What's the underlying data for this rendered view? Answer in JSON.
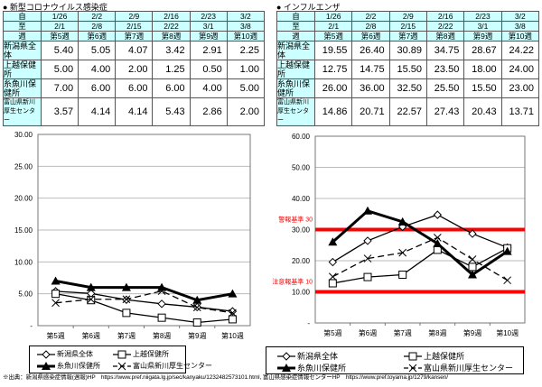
{
  "covid": {
    "title": "● 新型コロナウイルス感染症",
    "header_labels": [
      "自",
      "至",
      "週"
    ],
    "from": [
      "1/26",
      "2/2",
      "2/9",
      "2/16",
      "2/23",
      "3/2"
    ],
    "to": [
      "2/1",
      "2/8",
      "2/15",
      "2/22",
      "3/1",
      "3/8"
    ],
    "weeks": [
      "第5週",
      "第6週",
      "第7週",
      "第8週",
      "第9週",
      "第10週"
    ],
    "rows": [
      {
        "label": "新潟県全体",
        "values": [
          "5.40",
          "5.05",
          "4.07",
          "3.42",
          "2.91",
          "2.25"
        ]
      },
      {
        "label": "上越保健所",
        "values": [
          "5.00",
          "4.00",
          "2.00",
          "1.25",
          "0.50",
          "1.00"
        ]
      },
      {
        "label": "糸魚川保健所",
        "values": [
          "7.00",
          "6.00",
          "6.00",
          "6.00",
          "4.00",
          "5.00"
        ]
      },
      {
        "label": "富山県新川厚生センター",
        "values": [
          "3.57",
          "4.14",
          "4.14",
          "5.43",
          "2.86",
          "2.00"
        ]
      }
    ]
  },
  "flu": {
    "title": "● インフルエンザ",
    "header_labels": [
      "自",
      "至",
      "週"
    ],
    "from": [
      "1/26",
      "2/2",
      "2/9",
      "2/16",
      "2/23",
      "3/2"
    ],
    "to": [
      "2/1",
      "2/8",
      "2/15",
      "2/22",
      "3/1",
      "3/8"
    ],
    "weeks": [
      "第5週",
      "第6週",
      "第7週",
      "第8週",
      "第9週",
      "第10週"
    ],
    "rows": [
      {
        "label": "新潟県全体",
        "values": [
          "19.55",
          "26.40",
          "30.89",
          "34.75",
          "28.67",
          "24.22"
        ]
      },
      {
        "label": "上越保健所",
        "values": [
          "12.75",
          "14.75",
          "15.50",
          "23.50",
          "18.00",
          "24.00"
        ]
      },
      {
        "label": "糸魚川保健所",
        "values": [
          "26.00",
          "36.00",
          "32.50",
          "25.50",
          "15.50",
          "23.00"
        ]
      },
      {
        "label": "富山県新川厚生センター",
        "values": [
          "14.86",
          "20.71",
          "22.57",
          "27.43",
          "20.43",
          "13.71"
        ]
      }
    ]
  },
  "chart_data": [
    {
      "type": "line",
      "categories": [
        "第5週",
        "第6週",
        "第7週",
        "第8週",
        "第9週",
        "第10週"
      ],
      "ylim": [
        0,
        30
      ],
      "yticks": [
        "-",
        "5.00",
        "10.00",
        "15.00",
        "20.00",
        "25.00",
        "30.00"
      ],
      "grid": true,
      "legend": "bottom",
      "series": [
        {
          "name": "新潟県全体",
          "values": [
            5.4,
            5.05,
            4.07,
            3.42,
            2.91,
            2.25
          ],
          "marker": "diamond",
          "style": "solid"
        },
        {
          "name": "上越保健所",
          "values": [
            5.0,
            4.0,
            2.0,
            1.25,
            0.5,
            1.0
          ],
          "marker": "square",
          "style": "solid"
        },
        {
          "name": "糸魚川保健所",
          "values": [
            7.0,
            6.0,
            6.0,
            6.0,
            4.0,
            5.0
          ],
          "marker": "triangle",
          "style": "thick"
        },
        {
          "name": "富山県新川厚生センター",
          "values": [
            3.57,
            4.14,
            4.14,
            5.43,
            2.86,
            2.0
          ],
          "marker": "x",
          "style": "dashed"
        }
      ]
    },
    {
      "type": "line",
      "categories": [
        "第5週",
        "第6週",
        "第7週",
        "第8週",
        "第9週",
        "第10週"
      ],
      "ylim": [
        0,
        60
      ],
      "yticks": [
        "-",
        "10.00",
        "20.00",
        "30.00",
        "40.00",
        "50.00",
        "60.00"
      ],
      "grid": true,
      "legend": "bottom",
      "thresholds": [
        {
          "label": "警報基準 30",
          "value": 30,
          "color": "#ff0000"
        },
        {
          "label": "注意報基準 10",
          "value": 10,
          "color": "#ff0000"
        }
      ],
      "series": [
        {
          "name": "新潟県全体",
          "values": [
            19.55,
            26.4,
            30.89,
            34.75,
            28.67,
            24.22
          ],
          "marker": "diamond",
          "style": "solid"
        },
        {
          "name": "上越保健所",
          "values": [
            12.75,
            14.75,
            15.5,
            23.5,
            18.0,
            24.0
          ],
          "marker": "square",
          "style": "solid"
        },
        {
          "name": "糸魚川保健所",
          "values": [
            26.0,
            36.0,
            32.5,
            25.5,
            15.5,
            23.0
          ],
          "marker": "triangle",
          "style": "thick"
        },
        {
          "name": "富山県新川厚生センター",
          "values": [
            14.86,
            20.71,
            22.57,
            27.43,
            20.43,
            13.71
          ],
          "marker": "x",
          "style": "dashed"
        }
      ]
    }
  ],
  "footer": "※出典：新潟県感染症情報(週報)HP　https://www.pref.niigata.lg.jp/sec/kanyaku/1232482573101.html, 富山県感染症情報センターHP　https://www.pref.toyama.jp/1279/kansen/"
}
